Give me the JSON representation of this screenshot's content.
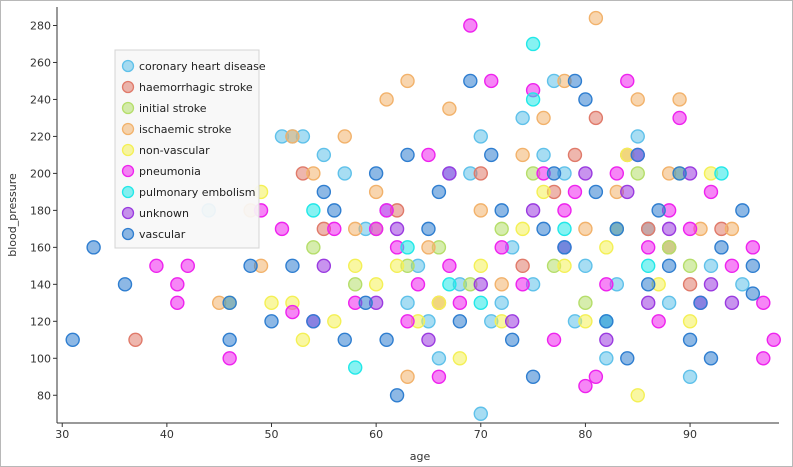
{
  "chart_data": {
    "type": "scatter",
    "xlabel": "age",
    "ylabel": "blood_pressure",
    "xlim": [
      29.5,
      98.5
    ],
    "ylim": [
      65,
      290
    ],
    "x_ticks": [
      30,
      40,
      50,
      60,
      70,
      80,
      90
    ],
    "y_ticks": [
      80,
      100,
      120,
      140,
      160,
      180,
      200,
      220,
      240,
      260,
      280
    ],
    "legend_position": "top-left",
    "grid": false,
    "series": [
      {
        "name": "coronary heart disease",
        "color": "#5fc1ea",
        "points": [
          [
            44,
            180
          ],
          [
            51,
            220
          ],
          [
            53,
            220
          ],
          [
            52,
            220
          ],
          [
            55,
            210
          ],
          [
            57,
            200
          ],
          [
            59,
            170
          ],
          [
            61,
            180
          ],
          [
            63,
            130
          ],
          [
            64,
            150
          ],
          [
            65,
            120
          ],
          [
            66,
            100
          ],
          [
            67,
            200
          ],
          [
            68,
            140
          ],
          [
            69,
            200
          ],
          [
            70,
            220
          ],
          [
            70,
            70
          ],
          [
            71,
            120
          ],
          [
            72,
            130
          ],
          [
            73,
            160
          ],
          [
            74,
            230
          ],
          [
            75,
            140
          ],
          [
            76,
            210
          ],
          [
            77,
            250
          ],
          [
            78,
            200
          ],
          [
            79,
            120
          ],
          [
            80,
            150
          ],
          [
            82,
            100
          ],
          [
            83,
            140
          ],
          [
            85,
            220
          ],
          [
            86,
            170
          ],
          [
            88,
            130
          ],
          [
            90,
            90
          ],
          [
            92,
            150
          ],
          [
            95,
            140
          ]
        ]
      },
      {
        "name": "haemorrhagic stroke",
        "color": "#e07a6a",
        "points": [
          [
            37,
            110
          ],
          [
            53,
            200
          ],
          [
            55,
            170
          ],
          [
            62,
            180
          ],
          [
            66,
            130
          ],
          [
            70,
            200
          ],
          [
            74,
            150
          ],
          [
            77,
            190
          ],
          [
            79,
            210
          ],
          [
            81,
            230
          ],
          [
            84,
            210
          ],
          [
            86,
            170
          ],
          [
            88,
            160
          ],
          [
            90,
            140
          ],
          [
            93,
            170
          ]
        ]
      },
      {
        "name": "initial stroke",
        "color": "#b5de6a",
        "points": [
          [
            54,
            160
          ],
          [
            58,
            140
          ],
          [
            60,
            170
          ],
          [
            63,
            150
          ],
          [
            66,
            160
          ],
          [
            69,
            140
          ],
          [
            72,
            170
          ],
          [
            75,
            200
          ],
          [
            77,
            150
          ],
          [
            80,
            130
          ],
          [
            83,
            170
          ],
          [
            85,
            200
          ],
          [
            88,
            160
          ],
          [
            90,
            150
          ]
        ]
      },
      {
        "name": "ischaemic stroke",
        "color": "#f2b26b",
        "points": [
          [
            45,
            130
          ],
          [
            48,
            180
          ],
          [
            49,
            150
          ],
          [
            52,
            220
          ],
          [
            54,
            200
          ],
          [
            57,
            220
          ],
          [
            58,
            170
          ],
          [
            60,
            190
          ],
          [
            61,
            240
          ],
          [
            63,
            250
          ],
          [
            63,
            90
          ],
          [
            65,
            160
          ],
          [
            67,
            235
          ],
          [
            70,
            180
          ],
          [
            72,
            140
          ],
          [
            74,
            210
          ],
          [
            76,
            230
          ],
          [
            78,
            250
          ],
          [
            80,
            170
          ],
          [
            81,
            284
          ],
          [
            83,
            190
          ],
          [
            85,
            240
          ],
          [
            88,
            200
          ],
          [
            89,
            240
          ],
          [
            91,
            170
          ],
          [
            94,
            170
          ]
        ]
      },
      {
        "name": "non-vascular",
        "color": "#f4f055",
        "points": [
          [
            46,
            130
          ],
          [
            49,
            190
          ],
          [
            50,
            130
          ],
          [
            52,
            130
          ],
          [
            53,
            110
          ],
          [
            56,
            120
          ],
          [
            58,
            150
          ],
          [
            60,
            140
          ],
          [
            62,
            150
          ],
          [
            64,
            120
          ],
          [
            66,
            130
          ],
          [
            68,
            100
          ],
          [
            70,
            150
          ],
          [
            72,
            120
          ],
          [
            74,
            170
          ],
          [
            76,
            190
          ],
          [
            78,
            150
          ],
          [
            80,
            120
          ],
          [
            82,
            160
          ],
          [
            84,
            210
          ],
          [
            85,
            80
          ],
          [
            87,
            140
          ],
          [
            89,
            200
          ],
          [
            90,
            120
          ],
          [
            92,
            200
          ]
        ]
      },
      {
        "name": "pneumonia",
        "color": "#ee22ee",
        "points": [
          [
            39,
            150
          ],
          [
            41,
            140
          ],
          [
            41,
            130
          ],
          [
            42,
            150
          ],
          [
            46,
            100
          ],
          [
            49,
            180
          ],
          [
            51,
            170
          ],
          [
            52,
            125
          ],
          [
            54,
            120
          ],
          [
            56,
            170
          ],
          [
            58,
            130
          ],
          [
            60,
            170
          ],
          [
            61,
            180
          ],
          [
            62,
            160
          ],
          [
            63,
            120
          ],
          [
            64,
            140
          ],
          [
            65,
            210
          ],
          [
            66,
            90
          ],
          [
            67,
            150
          ],
          [
            68,
            130
          ],
          [
            69,
            280
          ],
          [
            71,
            250
          ],
          [
            72,
            160
          ],
          [
            74,
            140
          ],
          [
            75,
            245
          ],
          [
            76,
            200
          ],
          [
            77,
            110
          ],
          [
            78,
            180
          ],
          [
            79,
            190
          ],
          [
            80,
            85
          ],
          [
            81,
            90
          ],
          [
            82,
            140
          ],
          [
            83,
            200
          ],
          [
            84,
            250
          ],
          [
            85,
            210
          ],
          [
            86,
            160
          ],
          [
            87,
            120
          ],
          [
            88,
            180
          ],
          [
            89,
            230
          ],
          [
            90,
            170
          ],
          [
            91,
            130
          ],
          [
            92,
            190
          ],
          [
            94,
            150
          ],
          [
            96,
            160
          ],
          [
            97,
            100
          ],
          [
            98,
            110
          ],
          [
            97,
            130
          ]
        ]
      },
      {
        "name": "pulmonary embolism",
        "color": "#22e8e8",
        "points": [
          [
            54,
            180
          ],
          [
            58,
            95
          ],
          [
            63,
            160
          ],
          [
            67,
            140
          ],
          [
            70,
            130
          ],
          [
            75,
            270
          ],
          [
            75,
            240
          ],
          [
            78,
            170
          ],
          [
            82,
            120
          ],
          [
            86,
            150
          ],
          [
            93,
            200
          ]
        ]
      },
      {
        "name": "unknown",
        "color": "#9a3ae0",
        "points": [
          [
            55,
            150
          ],
          [
            60,
            130
          ],
          [
            62,
            170
          ],
          [
            65,
            110
          ],
          [
            67,
            200
          ],
          [
            70,
            140
          ],
          [
            73,
            120
          ],
          [
            75,
            180
          ],
          [
            78,
            160
          ],
          [
            80,
            200
          ],
          [
            82,
            110
          ],
          [
            84,
            190
          ],
          [
            86,
            130
          ],
          [
            88,
            170
          ],
          [
            90,
            200
          ],
          [
            92,
            140
          ],
          [
            94,
            130
          ]
        ]
      },
      {
        "name": "vascular",
        "color": "#2f7ed0",
        "points": [
          [
            31,
            110
          ],
          [
            33,
            160
          ],
          [
            36,
            140
          ],
          [
            46,
            130
          ],
          [
            46,
            110
          ],
          [
            48,
            150
          ],
          [
            50,
            120
          ],
          [
            52,
            150
          ],
          [
            54,
            120
          ],
          [
            55,
            190
          ],
          [
            56,
            180
          ],
          [
            57,
            110
          ],
          [
            59,
            130
          ],
          [
            60,
            200
          ],
          [
            61,
            110
          ],
          [
            62,
            80
          ],
          [
            63,
            210
          ],
          [
            65,
            170
          ],
          [
            66,
            190
          ],
          [
            68,
            120
          ],
          [
            69,
            250
          ],
          [
            71,
            210
          ],
          [
            72,
            180
          ],
          [
            73,
            110
          ],
          [
            75,
            90
          ],
          [
            76,
            170
          ],
          [
            77,
            200
          ],
          [
            78,
            160
          ],
          [
            79,
            250
          ],
          [
            80,
            240
          ],
          [
            81,
            190
          ],
          [
            82,
            120
          ],
          [
            83,
            170
          ],
          [
            84,
            100
          ],
          [
            85,
            210
          ],
          [
            86,
            140
          ],
          [
            87,
            180
          ],
          [
            88,
            150
          ],
          [
            89,
            200
          ],
          [
            90,
            110
          ],
          [
            91,
            130
          ],
          [
            92,
            100
          ],
          [
            93,
            160
          ],
          [
            95,
            180
          ],
          [
            96,
            150
          ],
          [
            96,
            135
          ]
        ]
      }
    ]
  }
}
